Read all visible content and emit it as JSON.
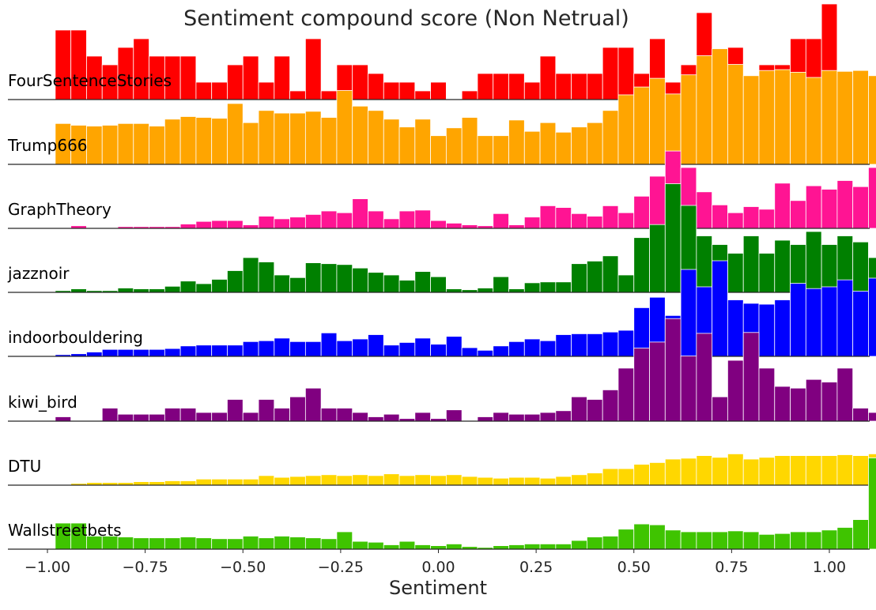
{
  "chart_data": {
    "type": "bar",
    "title": "Sentiment compound score (Non Netrual)",
    "xlabel": "Sentiment",
    "ylabel": "",
    "xlim": [
      -1.0,
      1.0
    ],
    "bin_width": 0.04,
    "x_ticks": [
      "−1.00",
      "−0.75",
      "−0.50",
      "−0.25",
      "0.00",
      "0.25",
      "0.50",
      "0.75",
      "1.00"
    ],
    "x_tick_values": [
      -1.0,
      -0.75,
      -0.5,
      -0.25,
      0.0,
      0.25,
      0.5,
      0.75,
      1.0
    ],
    "grid": false,
    "legend": "none",
    "series": [
      {
        "name": "FourSentenceStories",
        "color": "#ff0000",
        "start": -0.98,
        "values": [
          80,
          80,
          50,
          40,
          60,
          70,
          50,
          50,
          50,
          20,
          20,
          40,
          50,
          20,
          50,
          10,
          70,
          10,
          40,
          40,
          30,
          20,
          20,
          10,
          20,
          0,
          10,
          30,
          30,
          30,
          20,
          50,
          30,
          30,
          30,
          60,
          60,
          30,
          70,
          20,
          40,
          100,
          30,
          60,
          10,
          40,
          40,
          70,
          70,
          110
        ]
      },
      {
        "name": "Trump666",
        "color": "#ffa500",
        "start": -0.98,
        "values": [
          47,
          45,
          44,
          45,
          47,
          47,
          44,
          52,
          55,
          54,
          53,
          70,
          48,
          62,
          59,
          59,
          61,
          54,
          85,
          67,
          62,
          52,
          43,
          52,
          33,
          42,
          54,
          33,
          33,
          51,
          38,
          48,
          37,
          43,
          48,
          62,
          80,
          89,
          99,
          81,
          103,
          125,
          133,
          115,
          102,
          108,
          109,
          106,
          100,
          108,
          107,
          108,
          102,
          109,
          104,
          109,
          111,
          116
        ]
      },
      {
        "name": "GraphTheory",
        "color": "#ff1493",
        "start": -0.98,
        "values": [
          0,
          3,
          0,
          0,
          2,
          2,
          2,
          2,
          5,
          8,
          9,
          9,
          4,
          14,
          11,
          13,
          16,
          20,
          18,
          34,
          20,
          11,
          20,
          21,
          9,
          6,
          4,
          3,
          17,
          4,
          13,
          26,
          24,
          17,
          14,
          26,
          18,
          37,
          60,
          89,
          70,
          42,
          27,
          18,
          25,
          22,
          52,
          32,
          49,
          45,
          55,
          48,
          70,
          75,
          45,
          25
        ]
      },
      {
        "name": "jazznoir",
        "color": "#008000",
        "start": -0.98,
        "values": [
          2,
          4,
          2,
          2,
          5,
          4,
          4,
          7,
          13,
          10,
          15,
          25,
          40,
          35,
          20,
          17,
          34,
          33,
          32,
          28,
          23,
          20,
          14,
          24,
          18,
          4,
          3,
          5,
          18,
          4,
          11,
          12,
          12,
          33,
          36,
          42,
          20,
          63,
          78,
          125,
          100,
          65,
          55,
          45,
          65,
          45,
          60,
          55,
          70,
          55,
          65,
          58,
          40,
          30,
          30
        ]
      },
      {
        "name": "indoorbouldering",
        "color": "#0000ff",
        "start": -0.98,
        "values": [
          2,
          3,
          5,
          8,
          8,
          8,
          8,
          9,
          12,
          13,
          13,
          13,
          17,
          18,
          21,
          17,
          17,
          27,
          18,
          20,
          25,
          13,
          16,
          21,
          14,
          23,
          10,
          7,
          12,
          17,
          20,
          18,
          25,
          26,
          26,
          28,
          30,
          56,
          68,
          47,
          100,
          80,
          110,
          65,
          61,
          60,
          65,
          84,
          78,
          80,
          88,
          75,
          90,
          90,
          86,
          80,
          54
        ]
      },
      {
        "name": "kiwi_bird",
        "color": "#800080",
        "start": -0.98,
        "values": [
          5,
          0,
          0,
          15,
          8,
          8,
          8,
          15,
          15,
          10,
          10,
          25,
          10,
          25,
          15,
          28,
          38,
          15,
          15,
          10,
          5,
          8,
          3,
          10,
          3,
          13,
          0,
          5,
          10,
          8,
          8,
          10,
          12,
          28,
          25,
          36,
          61,
          84,
          91,
          118,
          75,
          101,
          28,
          70,
          102,
          61,
          40,
          38,
          48,
          45,
          61,
          15,
          10,
          28
        ]
      },
      {
        "name": "DTU",
        "color": "#ffd700",
        "start": -0.98,
        "values": [
          0,
          2,
          3,
          3,
          3,
          4,
          4,
          5,
          5,
          7,
          7,
          7,
          7,
          11,
          9,
          10,
          11,
          12,
          11,
          12,
          11,
          13,
          11,
          12,
          11,
          12,
          10,
          9,
          8,
          9,
          9,
          8,
          10,
          12,
          14,
          19,
          19,
          24,
          26,
          30,
          31,
          34,
          32,
          36,
          30,
          32,
          34,
          34,
          34,
          34,
          35,
          34,
          36,
          38,
          49,
          46
        ]
      },
      {
        "name": "Wallstreetbets",
        "color": "#3fc400",
        "start": -0.98,
        "values": [
          30,
          30,
          15,
          15,
          14,
          13,
          13,
          13,
          14,
          13,
          12,
          12,
          15,
          13,
          15,
          14,
          13,
          12,
          20,
          9,
          8,
          5,
          9,
          5,
          4,
          6,
          3,
          2,
          4,
          5,
          6,
          6,
          6,
          10,
          14,
          15,
          23,
          29,
          28,
          22,
          20,
          20,
          20,
          21,
          20,
          17,
          18,
          20,
          20,
          22,
          25,
          34,
          105
        ]
      }
    ]
  }
}
